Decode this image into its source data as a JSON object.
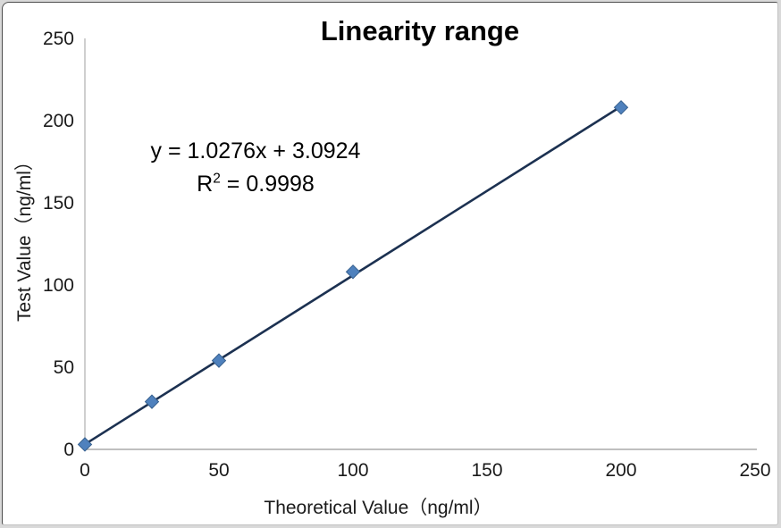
{
  "chart_data": {
    "type": "scatter",
    "title": "Linearity range",
    "xlabel": "Theoretical Value（ng/ml）",
    "ylabel": "Test Value（ng/ml）",
    "points": [
      [
        0,
        3
      ],
      [
        25,
        29
      ],
      [
        50,
        54
      ],
      [
        100,
        108
      ],
      [
        200,
        208
      ]
    ],
    "xlim": [
      0,
      250
    ],
    "ylim": [
      0,
      250
    ],
    "xticks": [
      0,
      50,
      100,
      150,
      200,
      250
    ],
    "yticks": [
      0,
      50,
      100,
      150,
      200,
      250
    ],
    "grid": false,
    "legend": "none",
    "trendline": {
      "slope": 1.0276,
      "intercept": 3.0924,
      "x_start": 0,
      "x_end": 200,
      "color": "#1c3151"
    },
    "annotation": {
      "equation": "y = 1.0276x + 3.0924",
      "r_base": "R",
      "r_sup": "2",
      "r_rest": " = 0.9998"
    },
    "marker": {
      "shape": "diamond",
      "fill": "#4f81bd",
      "stroke": "#38618f"
    },
    "colors": {
      "axis": "#bfbfbf",
      "tick_text": "#1a1a1a",
      "title_text": "#000000"
    }
  }
}
